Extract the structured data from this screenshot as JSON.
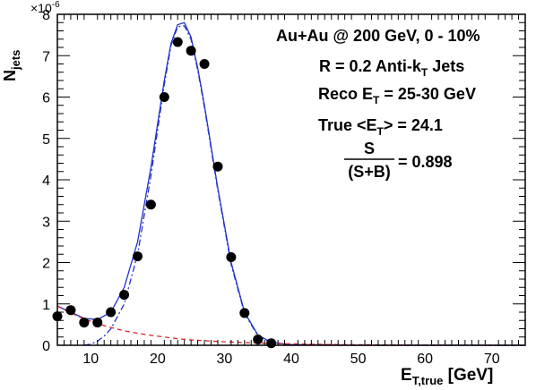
{
  "chart_data": {
    "type": "scatter",
    "xlabel_main": "E",
    "xlabel_sub": "T,true",
    "xlabel_unit": " [GeV]",
    "ylabel_main": "N",
    "ylabel_sub": "jets",
    "y_multiplier": "×10",
    "y_multiplier_exp": "-6",
    "xlim": [
      5,
      75
    ],
    "ylim": [
      0,
      8
    ],
    "x_ticks": [
      10,
      20,
      30,
      40,
      50,
      60,
      70
    ],
    "y_ticks": [
      0,
      1,
      2,
      3,
      4,
      5,
      6,
      7,
      8
    ],
    "grid": false,
    "annotations": {
      "line1": "Au+Au @ 200 GeV, 0 - 10%",
      "line2_main": "R = 0.2 Anti-k",
      "line2_sub": "T",
      "line2_tail": " Jets",
      "line3_main": "Reco E",
      "line3_sub": "T",
      "line3_tail": " = 25-30 GeV",
      "line4_main": "True <E",
      "line4_sub": "T",
      "line4_tail": "> = 24.1",
      "frac_num": "S",
      "frac_den": "(S+B)",
      "frac_value": "= 0.898"
    },
    "series": [
      {
        "kind": "points",
        "marker": "filled-circle",
        "color": "#000000",
        "x": [
          5,
          7,
          9,
          11,
          13,
          15,
          17,
          19,
          21,
          23,
          25,
          27,
          29,
          31,
          33,
          35,
          37
        ],
        "y": [
          0.7,
          0.85,
          0.55,
          0.55,
          0.8,
          1.22,
          2.15,
          3.4,
          6.0,
          7.33,
          7.12,
          6.8,
          4.32,
          2.13,
          0.78,
          0.14,
          0.05
        ]
      },
      {
        "kind": "line",
        "style": "solid",
        "color": "#2233cc",
        "x": [
          5,
          7,
          9,
          11,
          13,
          15,
          17,
          19,
          21,
          22,
          23,
          24,
          25,
          26,
          27,
          29,
          31,
          33,
          35,
          37,
          40,
          45,
          50,
          60,
          75
        ],
        "y": [
          0.95,
          0.8,
          0.65,
          0.62,
          0.8,
          1.4,
          2.5,
          4.3,
          6.4,
          7.3,
          7.75,
          7.8,
          7.45,
          6.7,
          5.8,
          3.8,
          2.0,
          0.8,
          0.25,
          0.07,
          0.02,
          0.01,
          0.0,
          0.0,
          0.0
        ]
      },
      {
        "kind": "line",
        "style": "dash-dot",
        "color": "#2233cc",
        "x": [
          9,
          10,
          11,
          12,
          13,
          15,
          17,
          19,
          21,
          22,
          23,
          24,
          25,
          26,
          27,
          29,
          31,
          33,
          35,
          37,
          40,
          45,
          50,
          60,
          75
        ],
        "y": [
          0.0,
          0.03,
          0.1,
          0.22,
          0.4,
          1.0,
          2.2,
          4.1,
          6.3,
          7.25,
          7.7,
          7.72,
          7.4,
          6.65,
          5.75,
          3.75,
          1.95,
          0.77,
          0.23,
          0.06,
          0.01,
          0.0,
          0.0,
          0.0,
          0.0
        ]
      },
      {
        "kind": "line",
        "style": "dashed",
        "color": "#dd2222",
        "x": [
          5,
          7,
          9,
          11,
          13,
          15,
          17,
          19,
          21,
          23,
          25,
          27,
          30,
          33,
          36,
          40,
          45,
          50,
          60,
          75
        ],
        "y": [
          0.95,
          0.78,
          0.64,
          0.52,
          0.43,
          0.35,
          0.29,
          0.24,
          0.2,
          0.16,
          0.13,
          0.11,
          0.085,
          0.065,
          0.05,
          0.035,
          0.02,
          0.012,
          0.005,
          0.001
        ]
      }
    ]
  }
}
